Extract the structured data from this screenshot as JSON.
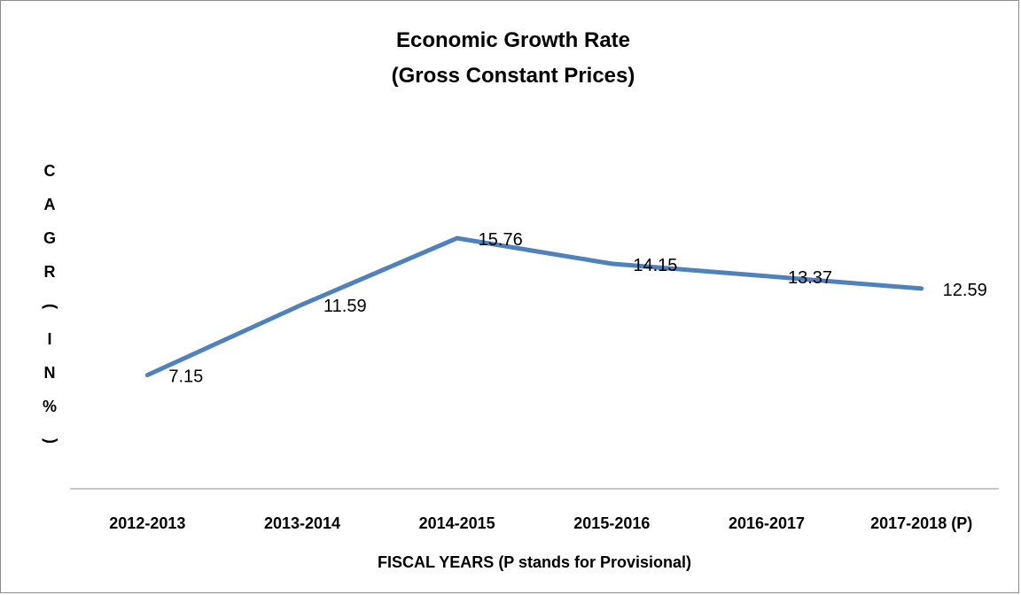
{
  "chart_data": {
    "type": "line",
    "title": [
      "Economic Growth Rate",
      "(Gross Constant Prices)"
    ],
    "xlabel": "FISCAL YEARS (P stands for Provisional)",
    "ylabel": "CAGR (IN %)",
    "categories": [
      "2012-2013",
      "2013-2014",
      "2014-2015",
      "2015-2016",
      "2016-2017",
      "2017-2018 (P)"
    ],
    "series": [
      {
        "values": [
          7.15,
          11.59,
          15.76,
          14.15,
          13.37,
          12.59
        ],
        "color": "#4f81bd"
      }
    ],
    "data_labels": [
      "7.15",
      "11.59",
      "15.76",
      "14.15",
      "13.37",
      "12.59"
    ],
    "ylim": [
      0,
      24
    ],
    "grid": false,
    "legend": "none",
    "axis_color": "#8c8c8c"
  }
}
